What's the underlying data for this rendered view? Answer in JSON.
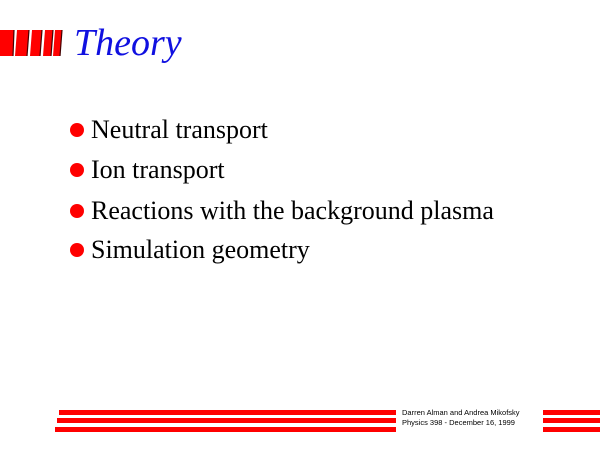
{
  "slide": {
    "title": "Theory",
    "bullets": [
      "Neutral transport",
      "Ion transport",
      "Reactions with the background plasma",
      "Simulation geometry"
    ],
    "footer": {
      "line1": "Darren Alman and Andrea Mikofsky",
      "line2": "Physics 398 - December 16, 1999"
    }
  },
  "colors": {
    "title": "#1010e0",
    "accent": "#ff0000"
  }
}
